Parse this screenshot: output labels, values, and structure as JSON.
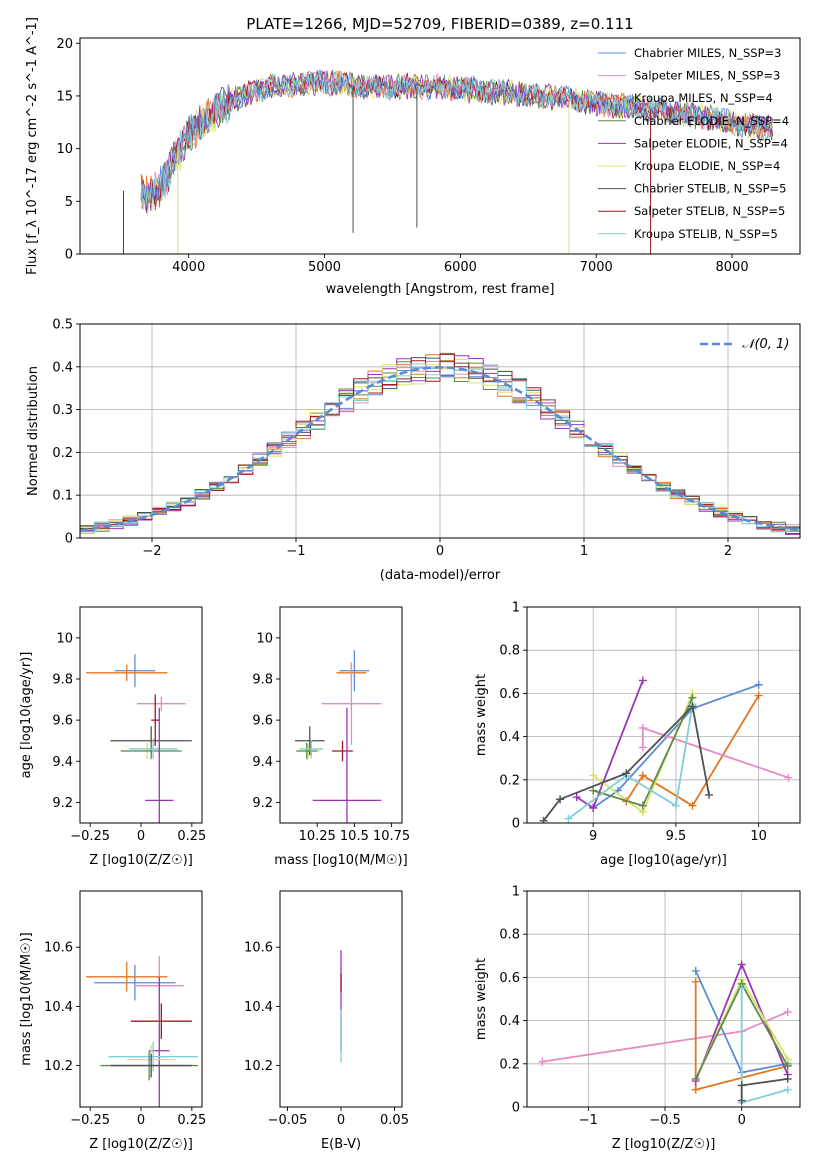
{
  "figure": {
    "title": "PLATE=1266, MJD=52709, FIBERID=0389, z=0.111"
  },
  "chart_data": [
    {
      "id": "spectrum",
      "type": "line",
      "xlabel": "wavelength [Angstrom, rest frame]",
      "ylabel": "Flux [f_λ 10^-17 erg cm^-2 s^-1 A^-1]",
      "xlim": [
        3200,
        8500
      ],
      "ylim": [
        0,
        20.5
      ],
      "xticks": [
        4000,
        5000,
        6000,
        7000,
        8000
      ],
      "yticks": [
        0,
        5,
        10,
        15,
        20
      ],
      "grid": false,
      "legend_position": "upper right",
      "series": [
        {
          "name": "Chabrier MILES, N_SSP=3",
          "color": "#5a8bd6"
        },
        {
          "name": "Salpeter MILES, N_SSP=3",
          "color": "#e58bc4"
        },
        {
          "name": "Kroupa MILES, N_SSP=4",
          "color": "#e57620"
        },
        {
          "name": "Chabrier ELODIE, N_SSP=4",
          "color": "#5d8a4a"
        },
        {
          "name": "Salpeter ELODIE, N_SSP=4",
          "color": "#9b35b8"
        },
        {
          "name": "Kroupa ELODIE, N_SSP=4",
          "color": "#d8e266"
        },
        {
          "name": "Chabrier STELIB, N_SSP=5",
          "color": "#505050"
        },
        {
          "name": "Salpeter STELIB, N_SSP=5",
          "color": "#a0191e"
        },
        {
          "name": "Kroupa STELIB, N_SSP=5",
          "color": "#7ecfd6"
        }
      ],
      "data_envelope": {
        "x": [
          3650,
          3700,
          3750,
          3800,
          3850,
          3900,
          3950,
          4000,
          4100,
          4200,
          4300,
          4400,
          4500,
          4600,
          4700,
          4800,
          5000,
          5200,
          5400,
          5600,
          5800,
          6000,
          6200,
          6400,
          6600,
          6800,
          7000,
          7200,
          7400,
          7600,
          7800,
          8000,
          8200,
          8300
        ],
        "y": [
          6.0,
          5.5,
          5.8,
          6.5,
          7.5,
          9.5,
          10.0,
          11.5,
          12.5,
          13.5,
          14.5,
          15.0,
          15.5,
          16.0,
          16.0,
          16.2,
          16.3,
          16.0,
          15.8,
          15.9,
          15.8,
          15.7,
          15.5,
          15.2,
          15.0,
          14.8,
          14.3,
          14.0,
          13.8,
          13.3,
          13.0,
          12.5,
          12.0,
          12.0
        ]
      }
    },
    {
      "id": "residuals",
      "type": "line",
      "xlabel": "(data-model)/error",
      "ylabel": "Normed distribution",
      "xlim": [
        -2.5,
        2.5
      ],
      "ylim": [
        0,
        0.5
      ],
      "xticks": [
        -2,
        -1,
        0,
        1,
        2
      ],
      "yticks": [
        0.0,
        0.1,
        0.2,
        0.3,
        0.4,
        0.5
      ],
      "grid": true,
      "legend_position": "upper right",
      "legend": [
        "𝒩(0, 1)"
      ],
      "reference_curve": {
        "name": "𝒩(0, 1)",
        "mean": 0,
        "sigma": 1,
        "style": "dashed",
        "color": "#5a8bd6"
      },
      "histogram_bins": {
        "start": -2.5,
        "width": 0.1,
        "count": 50
      }
    },
    {
      "id": "age_vs_Z",
      "type": "scatter",
      "xlabel": "Z [log10(Z/Z☉)]",
      "ylabel": "age [log10(age/yr)]",
      "xlim": [
        -0.3,
        0.3
      ],
      "ylim": [
        9.1,
        10.15
      ],
      "xticks": [
        -0.25,
        0.0,
        0.25
      ],
      "yticks": [
        9.2,
        9.4,
        9.6,
        9.8,
        10.0
      ],
      "grid": false,
      "points": [
        {
          "x": -0.03,
          "y": 9.84,
          "xerr": 0.1,
          "yerr": 0.16,
          "color": "#5a8bd6"
        },
        {
          "x": -0.07,
          "y": 9.83,
          "xerr": 0.2,
          "yerr": 0.08,
          "color": "#e57620"
        },
        {
          "x": 0.1,
          "y": 9.68,
          "xerr": 0.12,
          "yerr": 0.07,
          "color": "#e58bc4"
        },
        {
          "x": 0.05,
          "y": 9.5,
          "xerr": 0.2,
          "yerr": 0.14,
          "color": "#505050"
        },
        {
          "x": 0.03,
          "y": 9.45,
          "xerr": 0.12,
          "yerr": 0.08,
          "color": "#d8e266"
        },
        {
          "x": 0.05,
          "y": 9.45,
          "xerr": 0.15,
          "yerr": 0.08,
          "color": "#5d8a4a"
        },
        {
          "x": 0.06,
          "y": 9.46,
          "xerr": 0.12,
          "yerr": 0.1,
          "color": "#7ecfd6"
        },
        {
          "x": 0.07,
          "y": 9.6,
          "xerr": 0.02,
          "yerr": 0.25,
          "color": "#a0191e"
        },
        {
          "x": 0.09,
          "y": 9.21,
          "xerr": 0.07,
          "yerr": 0.9,
          "color": "#9b35b8"
        }
      ]
    },
    {
      "id": "age_vs_mass",
      "type": "scatter",
      "xlabel": "mass [log10(M/M☉)]",
      "ylabel": "",
      "xlim": [
        10.0,
        10.82
      ],
      "ylim": [
        9.1,
        10.15
      ],
      "xticks": [
        10.25,
        10.5,
        10.75
      ],
      "yticks": [
        9.2,
        9.4,
        9.6,
        9.8,
        10.0
      ],
      "grid": false,
      "points": [
        {
          "x": 10.5,
          "y": 9.84,
          "xerr": 0.1,
          "yerr": 0.2,
          "color": "#5a8bd6"
        },
        {
          "x": 10.48,
          "y": 9.83,
          "xerr": 0.1,
          "yerr": 0.1,
          "color": "#e57620"
        },
        {
          "x": 10.48,
          "y": 9.68,
          "xerr": 0.2,
          "yerr": 0.4,
          "color": "#e58bc4"
        },
        {
          "x": 10.2,
          "y": 9.5,
          "xerr": 0.1,
          "yerr": 0.14,
          "color": "#505050"
        },
        {
          "x": 10.19,
          "y": 9.45,
          "xerr": 0.08,
          "yerr": 0.07,
          "color": "#d8e266"
        },
        {
          "x": 10.18,
          "y": 9.45,
          "xerr": 0.07,
          "yerr": 0.08,
          "color": "#5d8a4a"
        },
        {
          "x": 10.21,
          "y": 9.46,
          "xerr": 0.08,
          "yerr": 0.09,
          "color": "#7ecfd6"
        },
        {
          "x": 10.42,
          "y": 9.45,
          "xerr": 0.07,
          "yerr": 0.1,
          "color": "#a0191e"
        },
        {
          "x": 10.45,
          "y": 9.21,
          "xerr": 0.23,
          "yerr": 0.9,
          "color": "#9b35b8"
        }
      ]
    },
    {
      "id": "weight_vs_age",
      "type": "line",
      "xlabel": "age [log10(age/yr)]",
      "ylabel": "mass weight",
      "xlim": [
        8.6,
        10.25
      ],
      "ylim": [
        0,
        1.0
      ],
      "xticks": [
        9.0,
        9.5,
        10.0
      ],
      "yticks": [
        0.0,
        0.2,
        0.4,
        0.6,
        0.8,
        1.0
      ],
      "grid": true,
      "series": [
        {
          "color": "#5a8bd6",
          "x": [
            9.0,
            9.15,
            9.6,
            10.0
          ],
          "y": [
            0.07,
            0.15,
            0.53,
            0.64
          ]
        },
        {
          "color": "#e57620",
          "x": [
            9.2,
            9.3,
            9.6,
            10.0
          ],
          "y": [
            0.1,
            0.22,
            0.08,
            0.59
          ]
        },
        {
          "color": "#e58bc4",
          "x": [
            9.3,
            9.3,
            10.18
          ],
          "y": [
            0.35,
            0.44,
            0.21
          ]
        },
        {
          "color": "#9b35b8",
          "x": [
            8.9,
            9.0,
            9.3
          ],
          "y": [
            0.12,
            0.07,
            0.66
          ]
        },
        {
          "color": "#d8e266",
          "x": [
            9.0,
            9.3,
            9.6
          ],
          "y": [
            0.22,
            0.05,
            0.6
          ]
        },
        {
          "color": "#5d8a4a",
          "x": [
            9.0,
            9.3,
            9.6
          ],
          "y": [
            0.15,
            0.08,
            0.58
          ]
        },
        {
          "color": "#7ecfd6",
          "x": [
            8.85,
            9.2,
            9.5,
            9.6
          ],
          "y": [
            0.02,
            0.22,
            0.08,
            0.55
          ]
        },
        {
          "color": "#505050",
          "x": [
            8.7,
            8.8,
            9.2,
            9.6,
            9.7
          ],
          "y": [
            0.01,
            0.11,
            0.23,
            0.54,
            0.13
          ]
        }
      ]
    },
    {
      "id": "mass_vs_Z",
      "type": "scatter",
      "xlabel": "Z [log10(Z/Z☉)]",
      "ylabel": "mass [log10(M/M☉)]",
      "xlim": [
        -0.3,
        0.3
      ],
      "ylim": [
        10.06,
        10.79
      ],
      "xticks": [
        -0.25,
        0.0,
        0.25
      ],
      "yticks": [
        10.2,
        10.4,
        10.6
      ],
      "grid": false,
      "points": [
        {
          "x": -0.03,
          "y": 10.48,
          "xerr": 0.2,
          "yerr": 0.12,
          "color": "#5a8bd6"
        },
        {
          "x": -0.07,
          "y": 10.5,
          "xerr": 0.2,
          "yerr": 0.1,
          "color": "#e57620"
        },
        {
          "x": 0.09,
          "y": 10.47,
          "xerr": 0.12,
          "yerr": 0.2,
          "color": "#e58bc4"
        },
        {
          "x": 0.1,
          "y": 10.35,
          "xerr": 0.15,
          "yerr": 0.12,
          "color": "#a0191e"
        },
        {
          "x": 0.09,
          "y": 10.25,
          "xerr": 0.05,
          "yerr": 0.5,
          "color": "#9b35b8"
        },
        {
          "x": 0.06,
          "y": 10.23,
          "xerr": 0.22,
          "yerr": 0.1,
          "color": "#7ecfd6"
        },
        {
          "x": 0.05,
          "y": 10.22,
          "xerr": 0.12,
          "yerr": 0.1,
          "color": "#d8e266"
        },
        {
          "x": 0.04,
          "y": 10.2,
          "xerr": 0.24,
          "yerr": 0.1,
          "color": "#5d8a4a"
        },
        {
          "x": 0.05,
          "y": 10.2,
          "xerr": 0.2,
          "yerr": 0.08,
          "color": "#505050"
        }
      ]
    },
    {
      "id": "mass_vs_ebv",
      "type": "scatter",
      "xlabel": "E(B-V)",
      "ylabel": "",
      "xlim": [
        -0.057,
        0.057
      ],
      "ylim": [
        10.06,
        10.79
      ],
      "xticks": [
        -0.05,
        0.0,
        0.05
      ],
      "yticks": [
        10.2,
        10.4,
        10.6
      ],
      "grid": false,
      "points": [
        {
          "x": 0.0,
          "y": 10.42,
          "yerr": 0.34,
          "color": "#9b35b8"
        },
        {
          "x": 0.0,
          "y": 10.48,
          "yerr": 0.06,
          "color": "#a0191e"
        },
        {
          "x": 0.0,
          "y": 10.3,
          "yerr": 0.18,
          "color": "#7ecfd6"
        }
      ]
    },
    {
      "id": "weight_vs_Z",
      "type": "line",
      "xlabel": "Z [log10(Z/Z☉)]",
      "ylabel": "mass weight",
      "xlim": [
        -1.4,
        0.38
      ],
      "ylim": [
        0,
        1.0
      ],
      "xticks": [
        -1.0,
        -0.5,
        0.0
      ],
      "yticks": [
        0.0,
        0.2,
        0.4,
        0.6,
        0.8,
        1.0
      ],
      "grid": true,
      "series": [
        {
          "color": "#e58bc4",
          "x": [
            -1.3,
            0.0,
            0.3
          ],
          "y": [
            0.21,
            0.35,
            0.44
          ]
        },
        {
          "color": "#5a8bd6",
          "x": [
            -0.3,
            0.0,
            0.3
          ],
          "y": [
            0.63,
            0.16,
            0.2
          ]
        },
        {
          "color": "#e57620",
          "x": [
            -0.3,
            -0.3,
            0.3
          ],
          "y": [
            0.58,
            0.08,
            0.19
          ]
        },
        {
          "color": "#9b35b8",
          "x": [
            -0.3,
            0.0,
            0.3
          ],
          "y": [
            0.12,
            0.66,
            0.15
          ]
        },
        {
          "color": "#d8e266",
          "x": [
            -0.3,
            0.0,
            0.3
          ],
          "y": [
            0.13,
            0.59,
            0.22
          ]
        },
        {
          "color": "#5d8a4a",
          "x": [
            -0.3,
            0.0,
            0.3
          ],
          "y": [
            0.13,
            0.57,
            0.19
          ]
        },
        {
          "color": "#7ecfd6",
          "x": [
            0.0,
            0.0,
            0.3
          ],
          "y": [
            0.55,
            0.02,
            0.08
          ]
        },
        {
          "color": "#505050",
          "x": [
            0.0,
            0.0,
            0.3
          ],
          "y": [
            0.03,
            0.1,
            0.13
          ]
        }
      ]
    }
  ]
}
